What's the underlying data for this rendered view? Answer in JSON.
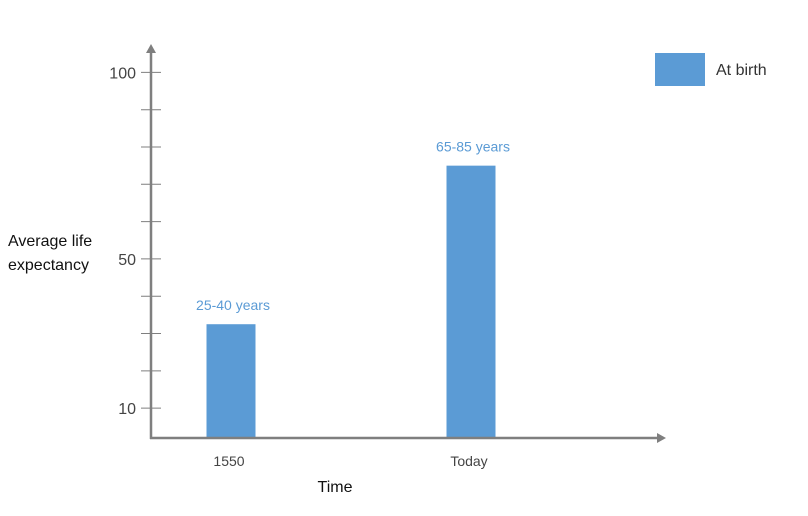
{
  "chart_data": {
    "type": "bar",
    "categories": [
      "1550",
      "Today"
    ],
    "series": [
      {
        "name": "At birth",
        "values": [
          32.5,
          75
        ],
        "labels": [
          "25-40 years",
          "65-85 years"
        ]
      }
    ],
    "xlabel": "Time",
    "ylabel_lines": [
      "Average life",
      "expectancy"
    ],
    "ylim": [
      2,
      106
    ],
    "yticks": [
      10,
      50,
      100
    ],
    "minor_tick_step": 10,
    "legend_position": "top-right",
    "colors": {
      "bar": "#5b9bd5",
      "data_label": "#5b9bd5",
      "axis": "#7f7f7f"
    }
  }
}
